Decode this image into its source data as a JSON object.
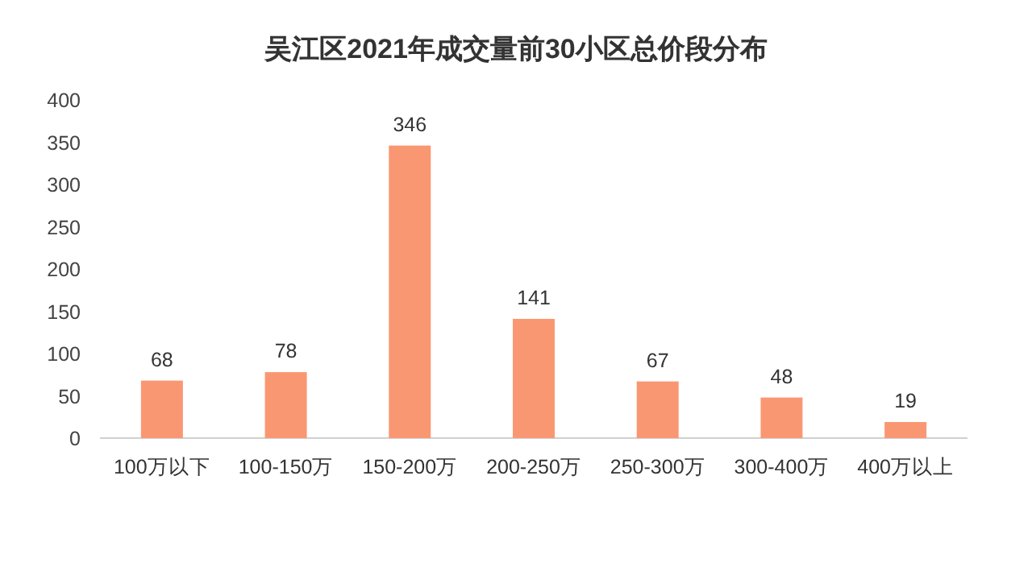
{
  "chart_data": {
    "type": "bar",
    "title": "吴江区2021年成交量前30小区总价段分布",
    "categories": [
      "100万以下",
      "100-150万",
      "150-200万",
      "200-250万",
      "250-300万",
      "300-400万",
      "400万以上"
    ],
    "values": [
      68,
      78,
      346,
      141,
      67,
      48,
      19
    ],
    "color": "#fa9773",
    "ylim": [
      0,
      400
    ],
    "yticks": [
      0,
      50,
      100,
      150,
      200,
      250,
      300,
      350,
      400
    ],
    "data_labels": true
  }
}
